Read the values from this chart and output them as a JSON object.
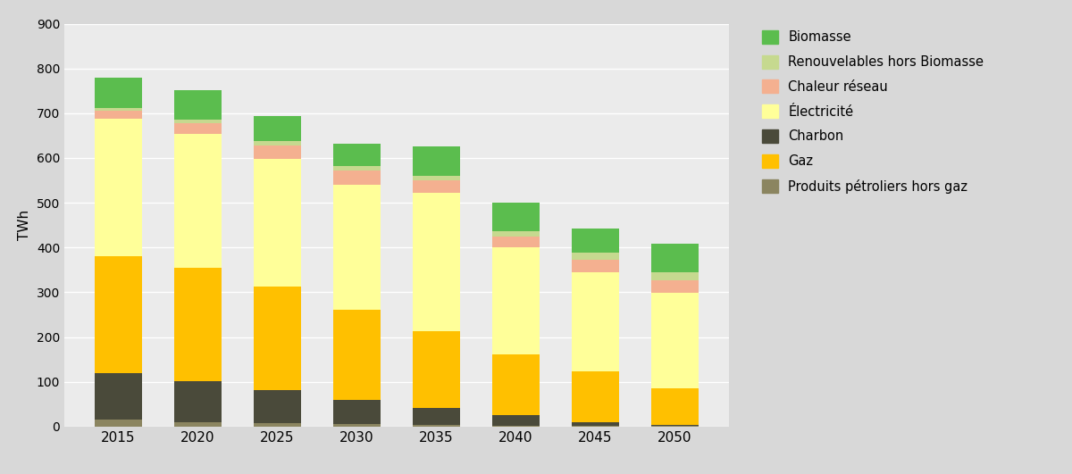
{
  "years": [
    2015,
    2020,
    2025,
    2030,
    2035,
    2040,
    2045,
    2050
  ],
  "series": {
    "Produits pétroliers hors gaz": {
      "values": [
        15,
        10,
        8,
        5,
        3,
        2,
        2,
        1
      ],
      "color": "#8B8560"
    },
    "Charbon": {
      "values": [
        105,
        92,
        73,
        55,
        38,
        23,
        8,
        3
      ],
      "color": "#4A4A3A"
    },
    "Gaz": {
      "values": [
        260,
        253,
        232,
        202,
        173,
        137,
        113,
        82
      ],
      "color": "#FFC000"
    },
    "Électricité": {
      "values": [
        308,
        298,
        285,
        278,
        308,
        238,
        222,
        213
      ],
      "color": "#FFFF99"
    },
    "Chaleur réseau": {
      "values": [
        18,
        25,
        30,
        33,
        28,
        25,
        28,
        28
      ],
      "color": "#F4B090"
    },
    "Renouvelables hors Biomasse": {
      "values": [
        5,
        8,
        10,
        10,
        10,
        12,
        15,
        18
      ],
      "color": "#C6D98F"
    },
    "Biomasse": {
      "values": [
        68,
        65,
        55,
        48,
        65,
        63,
        55,
        63
      ],
      "color": "#5BBD4E"
    }
  },
  "ylabel": "TWh",
  "ylim": [
    0,
    900
  ],
  "yticks": [
    0,
    100,
    200,
    300,
    400,
    500,
    600,
    700,
    800,
    900
  ],
  "fig_bg_color": "#D8D8D8",
  "plot_bg_color": "#EBEBEB",
  "bar_width": 0.6,
  "legend_order": [
    "Biomasse",
    "Renouvelables hors Biomasse",
    "Chaleur réseau",
    "Électricité",
    "Charbon",
    "Gaz",
    "Produits pétroliers hors gaz"
  ],
  "series_order": [
    "Produits pétroliers hors gaz",
    "Charbon",
    "Gaz",
    "Électricité",
    "Chaleur réseau",
    "Renouvelables hors Biomasse",
    "Biomasse"
  ]
}
